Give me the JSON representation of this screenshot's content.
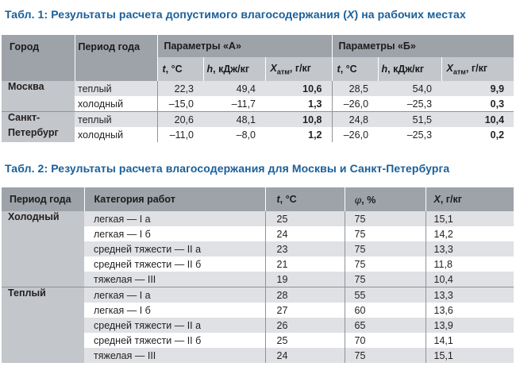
{
  "table1": {
    "caption_num": "Табл. 1:",
    "caption_text": "Результаты расчета допустимого влагосодержания (",
    "caption_var": "X",
    "caption_tail": ") на рабочих местах",
    "header": {
      "city": "Город",
      "period": "Период года",
      "params_a": "Параметры «А»",
      "params_b": "Параметры «Б»",
      "t_label": "t",
      "t_unit": ", °С",
      "h_label": "h",
      "h_unit": ", кДж/кг",
      "x_label": "X",
      "x_sub": "атм",
      "x_unit": ", г/кг"
    },
    "rows": [
      {
        "city": "Москва",
        "period": "теплый",
        "a_t": "22,3",
        "a_h": "49,4",
        "a_x": "10,6",
        "b_t": "28,5",
        "b_h": "54,0",
        "b_x": "9,9"
      },
      {
        "city": "",
        "period": "холодный",
        "a_t": "–15,0",
        "a_h": "–11,7",
        "a_x": "1,3",
        "b_t": "–26,0",
        "b_h": "–25,3",
        "b_x": "0,3"
      },
      {
        "city": "Санкт-",
        "period": "теплый",
        "a_t": "20,6",
        "a_h": "48,1",
        "a_x": "10,8",
        "b_t": "24,8",
        "b_h": "51,5",
        "b_x": "10,4"
      },
      {
        "city": "Петербург",
        "period": "холодный",
        "a_t": "–11,0",
        "a_h": "–8,0",
        "a_x": "1,2",
        "b_t": "–26,0",
        "b_h": "–25,3",
        "b_x": "0,2"
      }
    ]
  },
  "table2": {
    "caption_num": "Табл. 2:",
    "caption_text": "Результаты расчета влагосодержания для Москвы и Санкт-Петербурга",
    "header": {
      "period": "Период года",
      "category": "Категория работ",
      "t_label": "t",
      "t_unit": ", °С",
      "phi_label": "φ",
      "phi_unit": ", %",
      "x_label": "X",
      "x_unit": ", г/кг"
    },
    "groups": [
      {
        "season": "Холодный",
        "rows": [
          {
            "category": "легкая — I а",
            "t": "25",
            "phi": "75",
            "x": "15,1"
          },
          {
            "category": "легкая — I б",
            "t": "24",
            "phi": "75",
            "x": "14,2"
          },
          {
            "category": "средней тяжести — II а",
            "t": "23",
            "phi": "75",
            "x": "13,3"
          },
          {
            "category": "средней тяжести — II б",
            "t": "21",
            "phi": "75",
            "x": "11,8"
          },
          {
            "category": "тяжелая — III",
            "t": "19",
            "phi": "75",
            "x": "10,4"
          }
        ]
      },
      {
        "season": "Теплый",
        "rows": [
          {
            "category": "легкая — I а",
            "t": "28",
            "phi": "55",
            "x": "13,3"
          },
          {
            "category": "легкая — I б",
            "t": "27",
            "phi": "60",
            "x": "13,6"
          },
          {
            "category": "средней тяжести — II а",
            "t": "26",
            "phi": "65",
            "x": "13,9"
          },
          {
            "category": "средней тяжести — II б",
            "t": "25",
            "phi": "70",
            "x": "14,1"
          },
          {
            "category": "тяжелая — III",
            "t": "24",
            "phi": "75",
            "x": "15,1"
          }
        ]
      }
    ]
  },
  "colors": {
    "caption": "#1a5f9a",
    "header_dark": "#9ea3a9",
    "header_light": "#c3c6ca",
    "band": "#dfe1e4"
  }
}
